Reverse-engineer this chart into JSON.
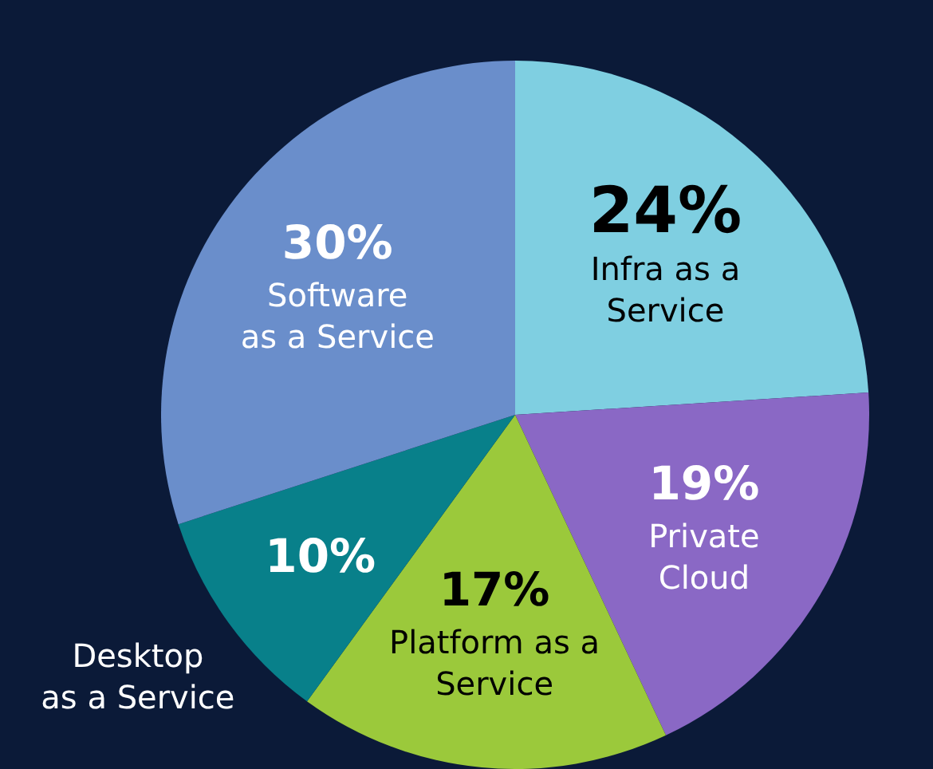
{
  "chart_data": {
    "type": "pie",
    "categories": [
      "Infra as a\nService",
      "Private\nCloud",
      "Platform as a\nService",
      "Desktop\nas a Service",
      "Software\nas a Service"
    ],
    "values": [
      24,
      19,
      17,
      10,
      30
    ],
    "value_labels": [
      "24%",
      "19%",
      "17%",
      "10%",
      "30%"
    ],
    "colors": [
      "#7fcfe1",
      "#8a68c5",
      "#9bc93b",
      "#08808a",
      "#6a8ecb"
    ]
  }
}
